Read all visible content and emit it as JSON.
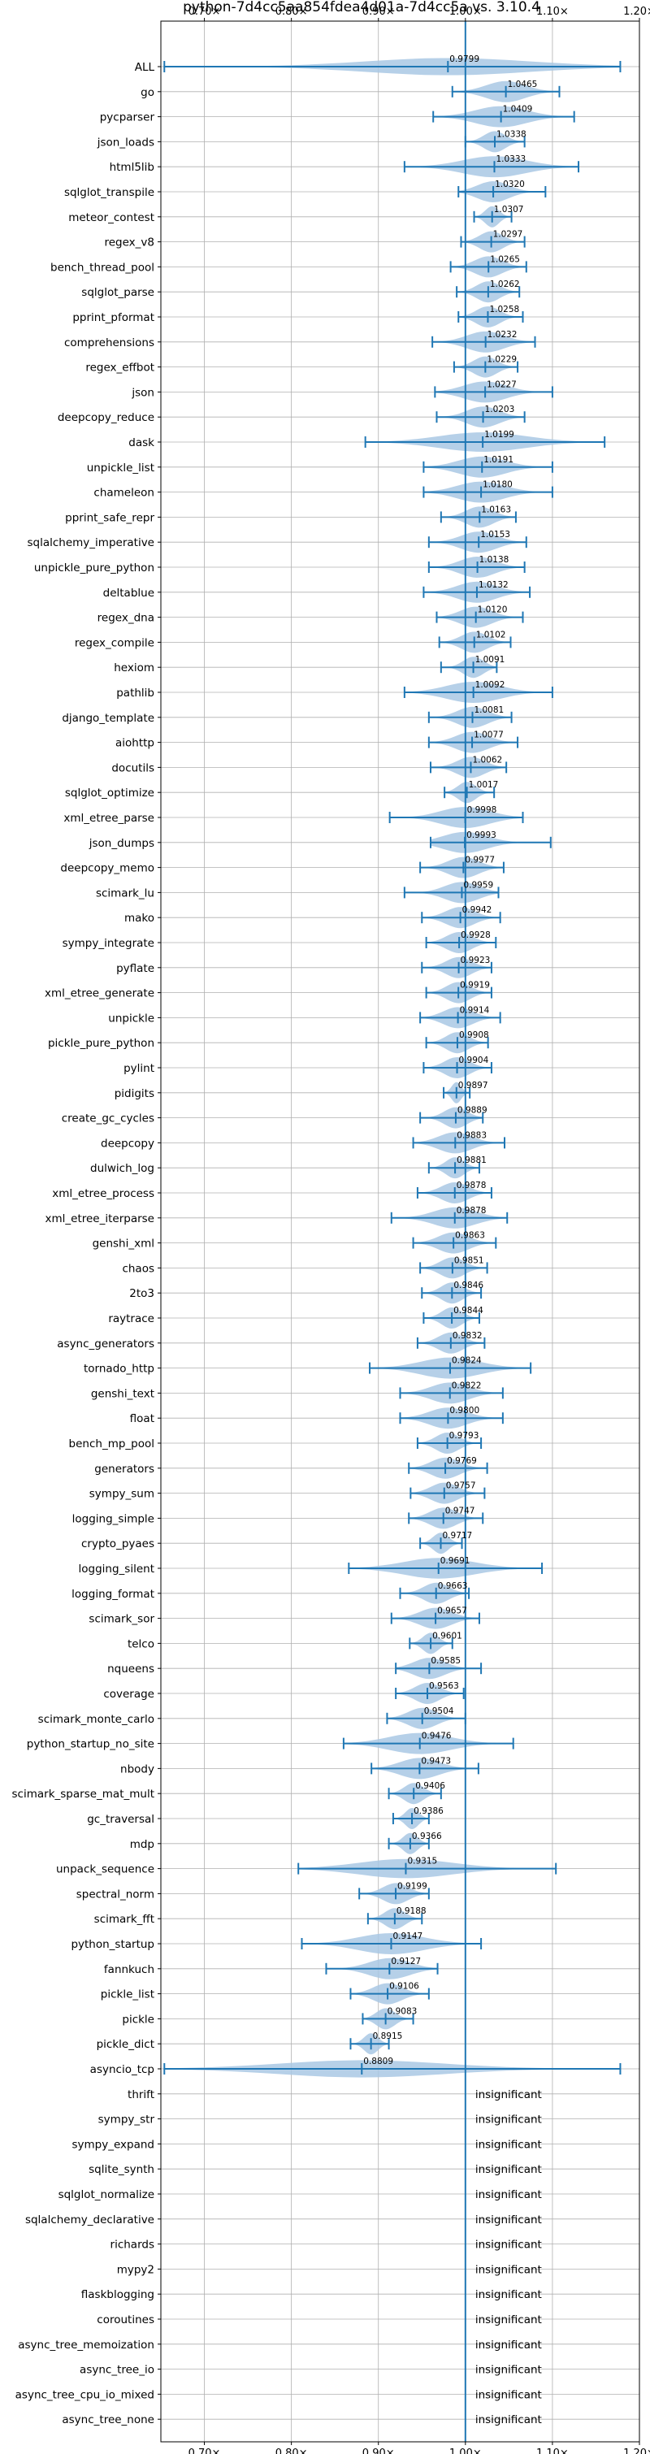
{
  "chart_data": {
    "type": "violin",
    "title": "python-7d4cc5aa854fdea4d01a-7d4cc5a vs. 3.10.4",
    "xlim": [
      0.65,
      1.2
    ],
    "xticks": [
      0.7,
      0.8,
      0.9,
      1.0,
      1.1,
      1.2
    ],
    "xtick_labels": [
      "0.70×",
      "0.80×",
      "0.90×",
      "1.00×",
      "1.10×",
      "1.20×"
    ],
    "grid": true,
    "reference_line": 1.0,
    "colors": {
      "violin": "#a9c8e4",
      "line": "#1f77b4",
      "grid": "#b0b0b0"
    },
    "insignificant_label": "insignificant",
    "series": [
      {
        "name": "ALL",
        "value": 0.9799,
        "label": "0.9799",
        "min": 0.654,
        "max": 1.178
      },
      {
        "name": "go",
        "value": 1.0465,
        "label": "1.0465",
        "min": 0.985,
        "max": 1.108
      },
      {
        "name": "pycparser",
        "value": 1.0409,
        "label": "1.0409",
        "min": 0.963,
        "max": 1.125
      },
      {
        "name": "json_loads",
        "value": 1.0338,
        "label": "1.0338",
        "min": 1.0,
        "max": 1.068
      },
      {
        "name": "html5lib",
        "value": 1.0333,
        "label": "1.0333",
        "min": 0.93,
        "max": 1.13
      },
      {
        "name": "sqlglot_transpile",
        "value": 1.032,
        "label": "1.0320",
        "min": 0.992,
        "max": 1.092
      },
      {
        "name": "meteor_contest",
        "value": 1.0307,
        "label": "1.0307",
        "min": 1.01,
        "max": 1.053
      },
      {
        "name": "regex_v8",
        "value": 1.0297,
        "label": "1.0297",
        "min": 0.995,
        "max": 1.068
      },
      {
        "name": "bench_thread_pool",
        "value": 1.0265,
        "label": "1.0265",
        "min": 0.983,
        "max": 1.07
      },
      {
        "name": "sqlglot_parse",
        "value": 1.0262,
        "label": "1.0262",
        "min": 0.99,
        "max": 1.062
      },
      {
        "name": "pprint_pformat",
        "value": 1.0258,
        "label": "1.0258",
        "min": 0.992,
        "max": 1.066
      },
      {
        "name": "comprehensions",
        "value": 1.0232,
        "label": "1.0232",
        "min": 0.962,
        "max": 1.08
      },
      {
        "name": "regex_effbot",
        "value": 1.0229,
        "label": "1.0229",
        "min": 0.987,
        "max": 1.06
      },
      {
        "name": "json",
        "value": 1.0227,
        "label": "1.0227",
        "min": 0.965,
        "max": 1.1
      },
      {
        "name": "deepcopy_reduce",
        "value": 1.0203,
        "label": "1.0203",
        "min": 0.967,
        "max": 1.068
      },
      {
        "name": "dask",
        "value": 1.0199,
        "label": "1.0199",
        "min": 0.885,
        "max": 1.16
      },
      {
        "name": "unpickle_list",
        "value": 1.0191,
        "label": "1.0191",
        "min": 0.952,
        "max": 1.1
      },
      {
        "name": "chameleon",
        "value": 1.018,
        "label": "1.0180",
        "min": 0.952,
        "max": 1.1
      },
      {
        "name": "pprint_safe_repr",
        "value": 1.0163,
        "label": "1.0163",
        "min": 0.972,
        "max": 1.058
      },
      {
        "name": "sqlalchemy_imperative",
        "value": 1.0153,
        "label": "1.0153",
        "min": 0.958,
        "max": 1.07
      },
      {
        "name": "unpickle_pure_python",
        "value": 1.0138,
        "label": "1.0138",
        "min": 0.958,
        "max": 1.068
      },
      {
        "name": "deltablue",
        "value": 1.0132,
        "label": "1.0132",
        "min": 0.952,
        "max": 1.074
      },
      {
        "name": "regex_dna",
        "value": 1.012,
        "label": "1.0120",
        "min": 0.967,
        "max": 1.066
      },
      {
        "name": "regex_compile",
        "value": 1.0102,
        "label": "1.0102",
        "min": 0.97,
        "max": 1.052
      },
      {
        "name": "hexiom",
        "value": 1.0091,
        "label": "1.0091",
        "min": 0.972,
        "max": 1.036
      },
      {
        "name": "pathlib",
        "value": 1.0092,
        "label": "1.0092",
        "min": 0.93,
        "max": 1.1
      },
      {
        "name": "django_template",
        "value": 1.0081,
        "label": "1.0081",
        "min": 0.958,
        "max": 1.053
      },
      {
        "name": "aiohttp",
        "value": 1.0077,
        "label": "1.0077",
        "min": 0.958,
        "max": 1.06
      },
      {
        "name": "docutils",
        "value": 1.0062,
        "label": "1.0062",
        "min": 0.96,
        "max": 1.047
      },
      {
        "name": "sqlglot_optimize",
        "value": 1.0017,
        "label": "1.0017",
        "min": 0.976,
        "max": 1.033
      },
      {
        "name": "xml_etree_parse",
        "value": 0.9998,
        "label": "0.9998",
        "min": 0.913,
        "max": 1.066
      },
      {
        "name": "json_dumps",
        "value": 0.9993,
        "label": "0.9993",
        "min": 0.96,
        "max": 1.098
      },
      {
        "name": "deepcopy_memo",
        "value": 0.9977,
        "label": "0.9977",
        "min": 0.948,
        "max": 1.044
      },
      {
        "name": "scimark_lu",
        "value": 0.9959,
        "label": "0.9959",
        "min": 0.93,
        "max": 1.038
      },
      {
        "name": "mako",
        "value": 0.9942,
        "label": "0.9942",
        "min": 0.95,
        "max": 1.04
      },
      {
        "name": "sympy_integrate",
        "value": 0.9928,
        "label": "0.9928",
        "min": 0.955,
        "max": 1.035
      },
      {
        "name": "pyflate",
        "value": 0.9923,
        "label": "0.9923",
        "min": 0.95,
        "max": 1.03
      },
      {
        "name": "xml_etree_generate",
        "value": 0.9919,
        "label": "0.9919",
        "min": 0.955,
        "max": 1.03
      },
      {
        "name": "unpickle",
        "value": 0.9914,
        "label": "0.9914",
        "min": 0.948,
        "max": 1.04
      },
      {
        "name": "pickle_pure_python",
        "value": 0.9908,
        "label": "0.9908",
        "min": 0.955,
        "max": 1.026
      },
      {
        "name": "pylint",
        "value": 0.9904,
        "label": "0.9904",
        "min": 0.952,
        "max": 1.03
      },
      {
        "name": "pidigits",
        "value": 0.9897,
        "label": "0.9897",
        "min": 0.975,
        "max": 1.005
      },
      {
        "name": "create_gc_cycles",
        "value": 0.9889,
        "label": "0.9889",
        "min": 0.948,
        "max": 1.02
      },
      {
        "name": "deepcopy",
        "value": 0.9883,
        "label": "0.9883",
        "min": 0.94,
        "max": 1.045
      },
      {
        "name": "dulwich_log",
        "value": 0.9881,
        "label": "0.9881",
        "min": 0.958,
        "max": 1.016
      },
      {
        "name": "xml_etree_process",
        "value": 0.9878,
        "label": "0.9878",
        "min": 0.945,
        "max": 1.03
      },
      {
        "name": "xml_etree_iterparse",
        "value": 0.9878,
        "label": "0.9878",
        "min": 0.915,
        "max": 1.048
      },
      {
        "name": "genshi_xml",
        "value": 0.9863,
        "label": "0.9863",
        "min": 0.94,
        "max": 1.035
      },
      {
        "name": "chaos",
        "value": 0.9851,
        "label": "0.9851",
        "min": 0.948,
        "max": 1.025
      },
      {
        "name": "2to3",
        "value": 0.9846,
        "label": "0.9846",
        "min": 0.95,
        "max": 1.018
      },
      {
        "name": "raytrace",
        "value": 0.9844,
        "label": "0.9844",
        "min": 0.952,
        "max": 1.016
      },
      {
        "name": "async_generators",
        "value": 0.9832,
        "label": "0.9832",
        "min": 0.945,
        "max": 1.022
      },
      {
        "name": "tornado_http",
        "value": 0.9824,
        "label": "0.9824",
        "min": 0.89,
        "max": 1.075
      },
      {
        "name": "genshi_text",
        "value": 0.9822,
        "label": "0.9822",
        "min": 0.925,
        "max": 1.043
      },
      {
        "name": "float",
        "value": 0.98,
        "label": "0.9800",
        "min": 0.925,
        "max": 1.043
      },
      {
        "name": "bench_mp_pool",
        "value": 0.9793,
        "label": "0.9793",
        "min": 0.945,
        "max": 1.018
      },
      {
        "name": "generators",
        "value": 0.9769,
        "label": "0.9769",
        "min": 0.935,
        "max": 1.025
      },
      {
        "name": "sympy_sum",
        "value": 0.9757,
        "label": "0.9757",
        "min": 0.937,
        "max": 1.022
      },
      {
        "name": "logging_simple",
        "value": 0.9747,
        "label": "0.9747",
        "min": 0.935,
        "max": 1.02
      },
      {
        "name": "crypto_pyaes",
        "value": 0.9717,
        "label": "0.9717",
        "min": 0.948,
        "max": 0.996
      },
      {
        "name": "logging_silent",
        "value": 0.9691,
        "label": "0.9691",
        "min": 0.866,
        "max": 1.088
      },
      {
        "name": "logging_format",
        "value": 0.9663,
        "label": "0.9663",
        "min": 0.925,
        "max": 1.004
      },
      {
        "name": "scimark_sor",
        "value": 0.9657,
        "label": "0.9657",
        "min": 0.915,
        "max": 1.016
      },
      {
        "name": "telco",
        "value": 0.9601,
        "label": "0.9601",
        "min": 0.936,
        "max": 0.985
      },
      {
        "name": "nqueens",
        "value": 0.9585,
        "label": "0.9585",
        "min": 0.92,
        "max": 1.018
      },
      {
        "name": "coverage",
        "value": 0.9563,
        "label": "0.9563",
        "min": 0.92,
        "max": 0.998
      },
      {
        "name": "scimark_monte_carlo",
        "value": 0.9504,
        "label": "0.9504",
        "min": 0.91,
        "max": 1.0
      },
      {
        "name": "python_startup_no_site",
        "value": 0.9476,
        "label": "0.9476",
        "min": 0.86,
        "max": 1.055
      },
      {
        "name": "nbody",
        "value": 0.9473,
        "label": "0.9473",
        "min": 0.892,
        "max": 1.015
      },
      {
        "name": "scimark_sparse_mat_mult",
        "value": 0.9406,
        "label": "0.9406",
        "min": 0.912,
        "max": 0.972
      },
      {
        "name": "gc_traversal",
        "value": 0.9386,
        "label": "0.9386",
        "min": 0.917,
        "max": 0.958
      },
      {
        "name": "mdp",
        "value": 0.9366,
        "label": "0.9366",
        "min": 0.912,
        "max": 0.958
      },
      {
        "name": "unpack_sequence",
        "value": 0.9315,
        "label": "0.9315",
        "min": 0.808,
        "max": 1.104
      },
      {
        "name": "spectral_norm",
        "value": 0.9199,
        "label": "0.9199",
        "min": 0.878,
        "max": 0.958
      },
      {
        "name": "scimark_fft",
        "value": 0.9188,
        "label": "0.9188",
        "min": 0.888,
        "max": 0.95
      },
      {
        "name": "python_startup",
        "value": 0.9147,
        "label": "0.9147",
        "min": 0.812,
        "max": 1.018
      },
      {
        "name": "fannkuch",
        "value": 0.9127,
        "label": "0.9127",
        "min": 0.84,
        "max": 0.968
      },
      {
        "name": "pickle_list",
        "value": 0.9106,
        "label": "0.9106",
        "min": 0.868,
        "max": 0.958
      },
      {
        "name": "pickle",
        "value": 0.9083,
        "label": "0.9083",
        "min": 0.882,
        "max": 0.94
      },
      {
        "name": "pickle_dict",
        "value": 0.8915,
        "label": "0.8915",
        "min": 0.868,
        "max": 0.912
      },
      {
        "name": "asyncio_tcp",
        "value": 0.8809,
        "label": "0.8809",
        "min": 0.654,
        "max": 1.178
      },
      {
        "name": "thrift",
        "insignificant": true
      },
      {
        "name": "sympy_str",
        "insignificant": true
      },
      {
        "name": "sympy_expand",
        "insignificant": true
      },
      {
        "name": "sqlite_synth",
        "insignificant": true
      },
      {
        "name": "sqlglot_normalize",
        "insignificant": true
      },
      {
        "name": "sqlalchemy_declarative",
        "insignificant": true
      },
      {
        "name": "richards",
        "insignificant": true
      },
      {
        "name": "mypy2",
        "insignificant": true
      },
      {
        "name": "flaskblogging",
        "insignificant": true
      },
      {
        "name": "coroutines",
        "insignificant": true
      },
      {
        "name": "async_tree_memoization",
        "insignificant": true
      },
      {
        "name": "async_tree_io",
        "insignificant": true
      },
      {
        "name": "async_tree_cpu_io_mixed",
        "insignificant": true
      },
      {
        "name": "async_tree_none",
        "insignificant": true
      }
    ]
  }
}
